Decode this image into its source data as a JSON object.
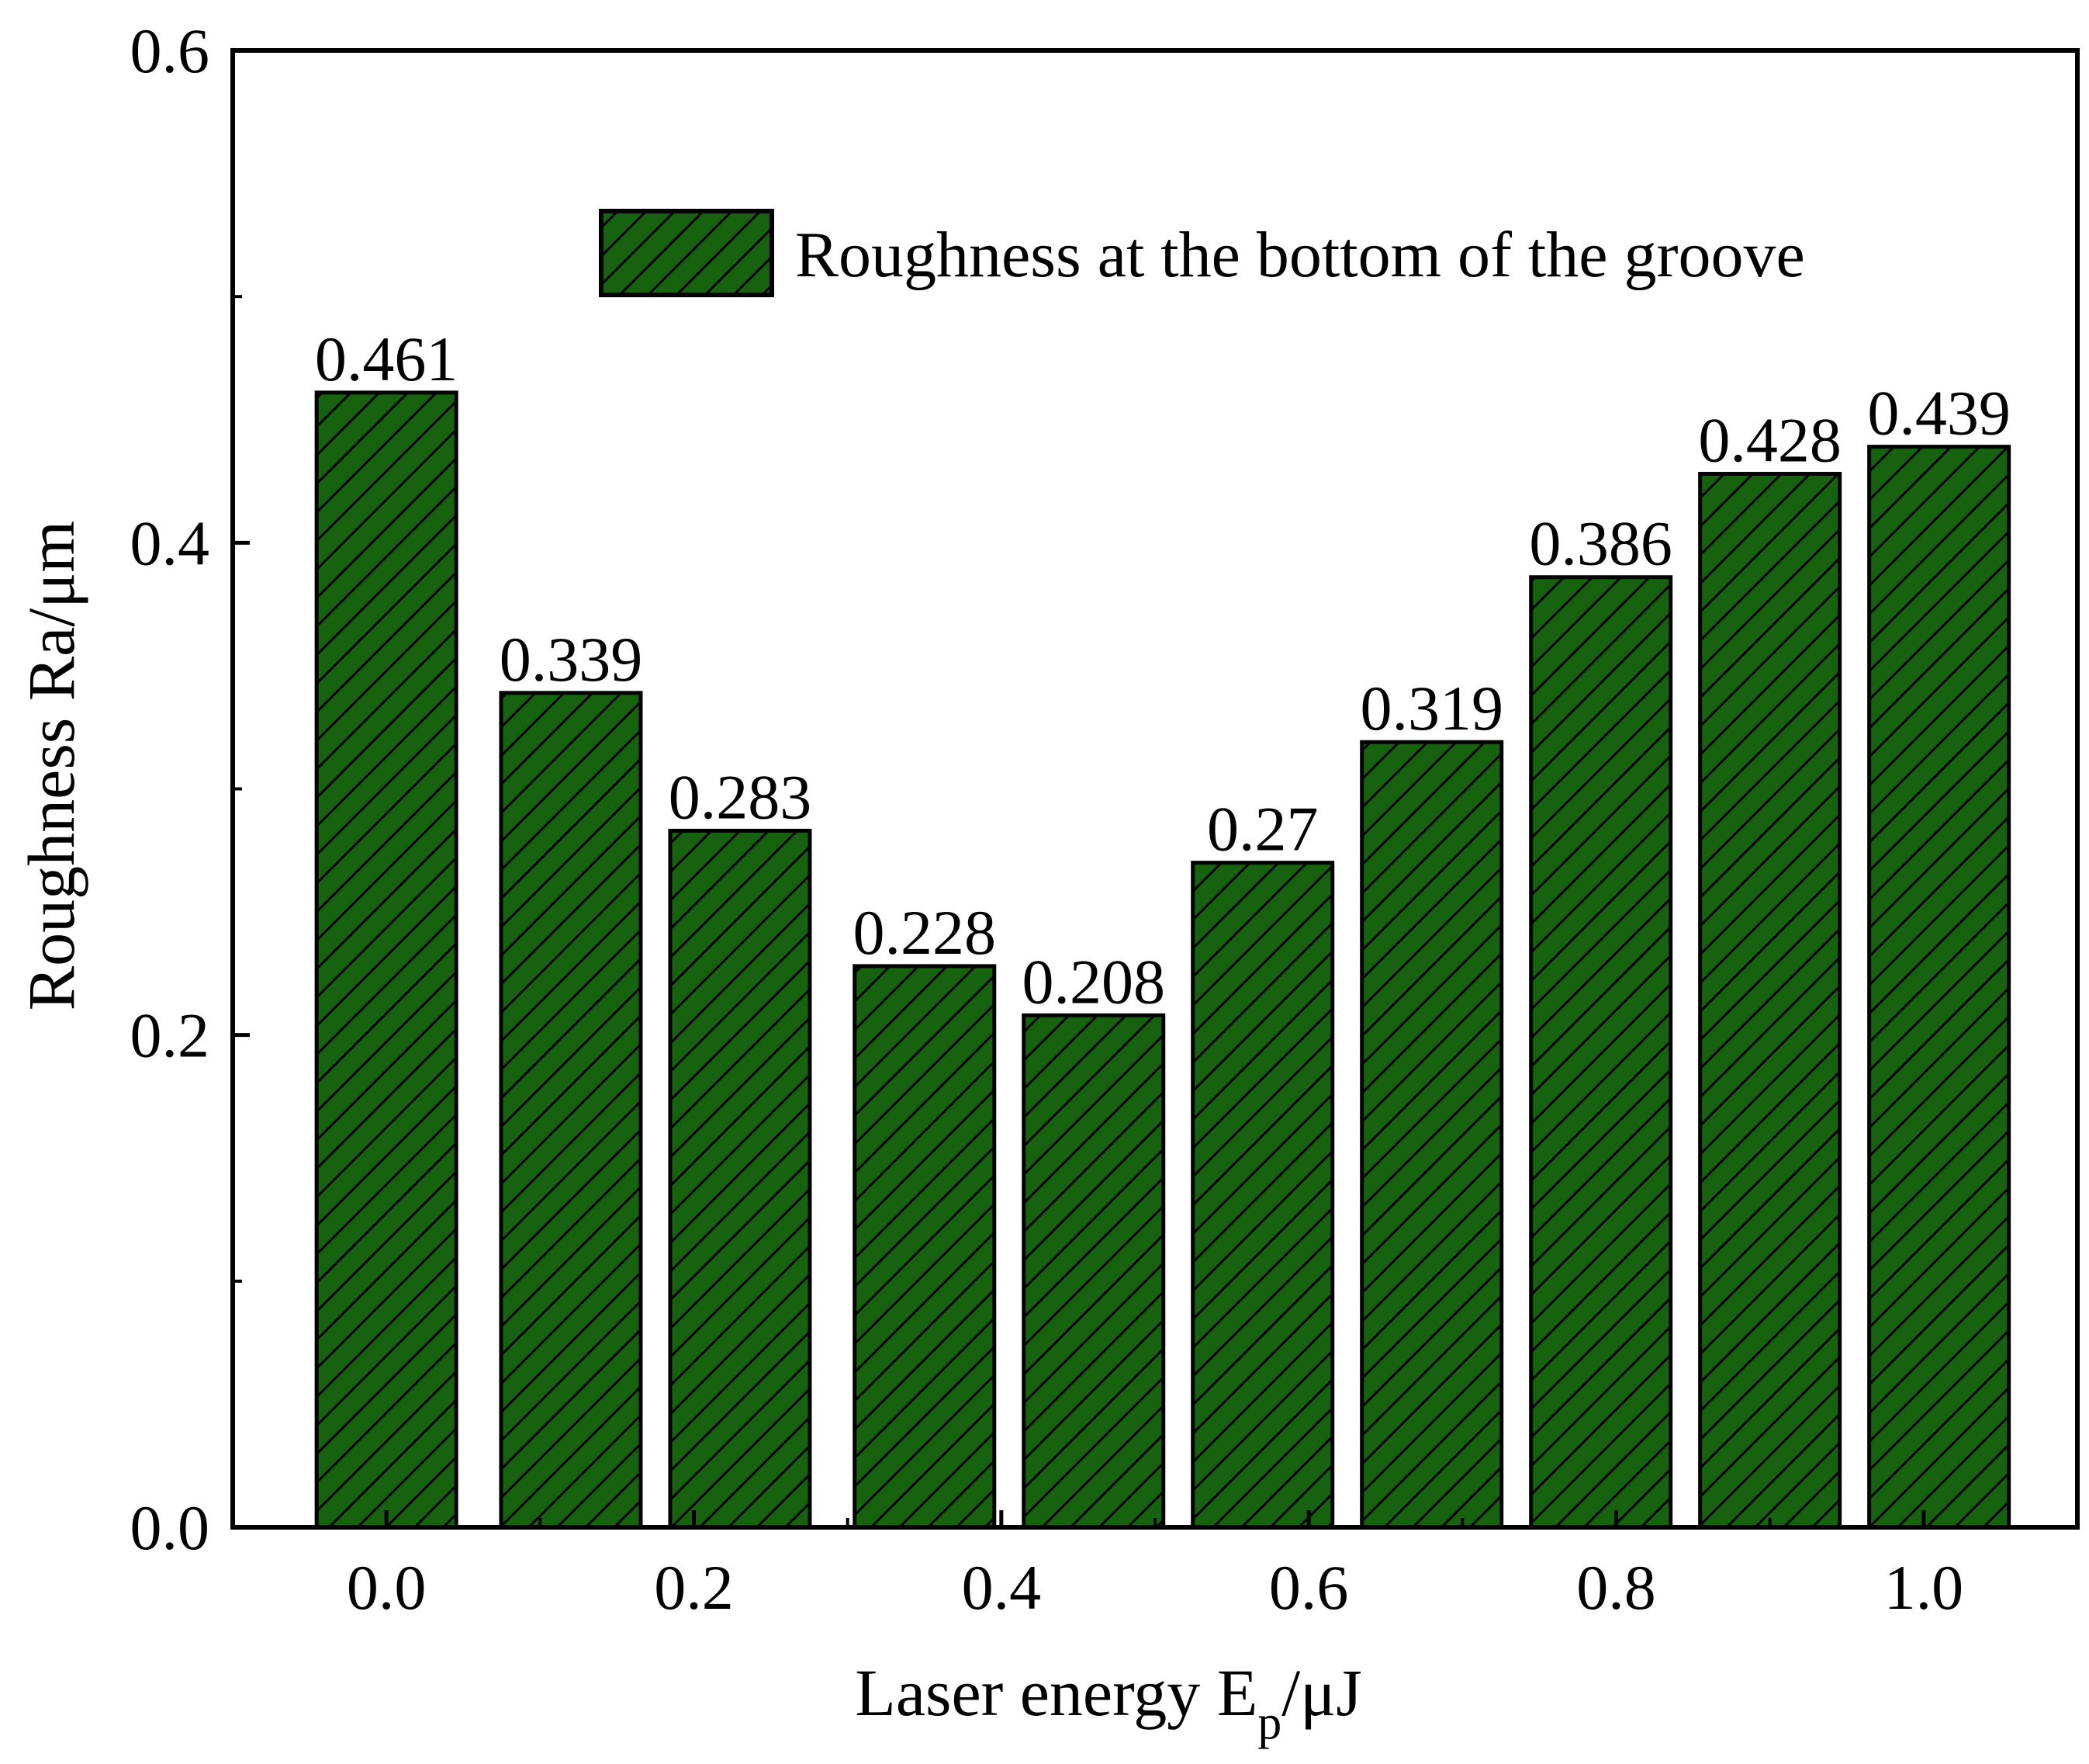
{
  "chart_data": {
    "type": "bar",
    "title": "",
    "xlabel": "Laser energy E",
    "xlabel_sub": "p",
    "xlabel_unit": "/μJ",
    "ylabel": "Roughness Ra/μm",
    "xlim": [
      -0.1,
      1.1
    ],
    "ylim": [
      0,
      0.6
    ],
    "x_ticks": [
      0.0,
      0.2,
      0.4,
      0.6,
      0.8,
      1.0
    ],
    "x_tick_labels": [
      "0.0",
      "0.2",
      "0.4",
      "0.6",
      "0.8",
      "1.0"
    ],
    "y_ticks": [
      0.0,
      0.2,
      0.4,
      0.6
    ],
    "y_tick_labels": [
      "0.0",
      "0.2",
      "0.4",
      "0.6"
    ],
    "y_minor_ticks": [
      0.1,
      0.3,
      0.5
    ],
    "legend_position": "top-right",
    "grid": false,
    "series": [
      {
        "name": "Roughness at the bottom of the groove",
        "color": "#17620f",
        "hatch": "diagonal",
        "x": [
          0.0,
          0.12,
          0.23,
          0.35,
          0.46,
          0.57,
          0.68,
          0.79,
          0.9,
          1.01
        ],
        "values": [
          0.461,
          0.339,
          0.283,
          0.228,
          0.208,
          0.27,
          0.319,
          0.386,
          0.428,
          0.439
        ],
        "labels": [
          "0.461",
          "0.339",
          "0.283",
          "0.228",
          "0.208",
          "0.27",
          "0.319",
          "0.386",
          "0.428",
          "0.439"
        ]
      }
    ]
  }
}
